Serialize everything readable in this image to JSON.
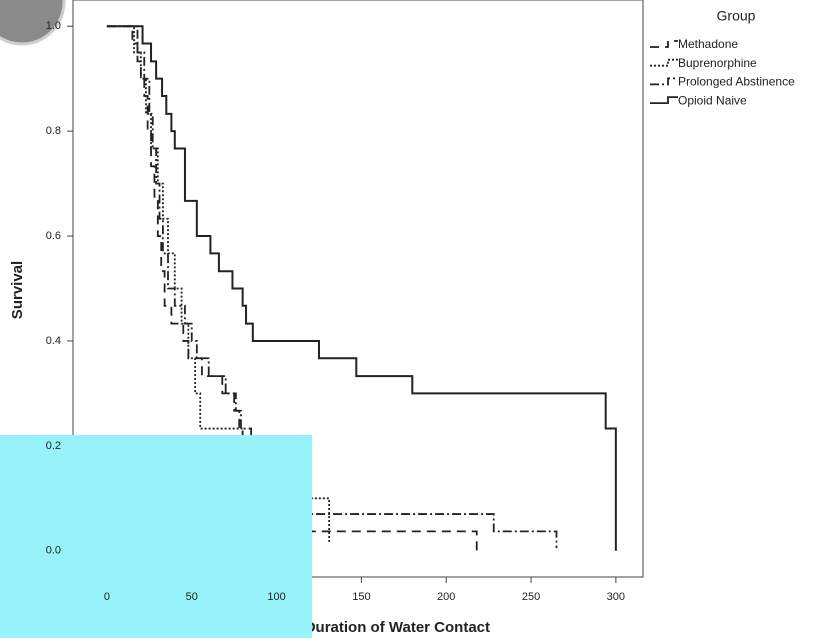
{
  "chart_data": {
    "type": "step",
    "ylabel": "Survival",
    "xlabel": "Duration of Water Contact",
    "legend_title": "Group",
    "legend": "top-right",
    "xlim": [
      -20,
      316
    ],
    "ylim": [
      -0.05,
      1.05
    ],
    "xticks": [
      0,
      50,
      100,
      150,
      200,
      250,
      300
    ],
    "yticks": [
      {
        "value": 0,
        "label": "0.0"
      },
      {
        "value": 0.2,
        "label": "0.2"
      },
      {
        "value": 0.4,
        "label": "0.4"
      },
      {
        "value": 0.6,
        "label": "0.6"
      },
      {
        "value": 0.8,
        "label": "0.8"
      },
      {
        "value": 1,
        "label": "1.0"
      }
    ],
    "series": [
      {
        "name": "Methadone",
        "color": "#222222",
        "line_style": "dashed",
        "x": [
          0,
          15,
          18,
          20,
          22,
          24,
          26,
          28,
          30,
          32,
          34,
          38,
          45,
          48,
          56,
          68,
          75,
          78,
          80,
          90,
          100,
          110,
          218
        ],
        "values": [
          1.0,
          0.967,
          0.933,
          0.9,
          0.867,
          0.8,
          0.733,
          0.667,
          0.6,
          0.533,
          0.467,
          0.433,
          0.4,
          0.367,
          0.333,
          0.3,
          0.267,
          0.233,
          0.2,
          0.133,
          0.1,
          0.037,
          0.0
        ]
      },
      {
        "name": "Buprenorphine",
        "color": "#222222",
        "line_style": "dotted",
        "x": [
          0,
          16,
          20,
          23,
          26,
          30,
          33,
          36,
          40,
          44,
          48,
          52,
          55,
          80,
          90,
          100,
          131
        ],
        "values": [
          1.0,
          0.95,
          0.9,
          0.833,
          0.767,
          0.7,
          0.633,
          0.567,
          0.5,
          0.433,
          0.367,
          0.3,
          0.233,
          0.2,
          0.15,
          0.1,
          0.017
        ]
      },
      {
        "name": "Prolonged Abstinence",
        "color": "#222222",
        "line_style": "dashdot",
        "x": [
          0,
          18,
          22,
          25,
          27,
          29,
          31,
          33,
          36,
          40,
          46,
          50,
          53,
          60,
          70,
          76,
          79,
          85,
          95,
          110,
          228,
          265
        ],
        "values": [
          1.0,
          0.95,
          0.9,
          0.833,
          0.767,
          0.7,
          0.633,
          0.567,
          0.5,
          0.467,
          0.433,
          0.4,
          0.367,
          0.333,
          0.3,
          0.267,
          0.233,
          0.2,
          0.133,
          0.07,
          0.037,
          0.005
        ]
      },
      {
        "name": "Opioid Naive",
        "color": "#222222",
        "line_style": "solid",
        "x": [
          0,
          21,
          26,
          29,
          32.5,
          35,
          38,
          40,
          46,
          53,
          61,
          66,
          74,
          80,
          82,
          86,
          125,
          147,
          180,
          294,
          300
        ],
        "values": [
          1.0,
          0.967,
          0.933,
          0.9,
          0.867,
          0.833,
          0.8,
          0.767,
          0.667,
          0.6,
          0.567,
          0.533,
          0.5,
          0.467,
          0.433,
          0.4,
          0.367,
          0.333,
          0.3,
          0.233,
          0.0
        ]
      }
    ]
  }
}
